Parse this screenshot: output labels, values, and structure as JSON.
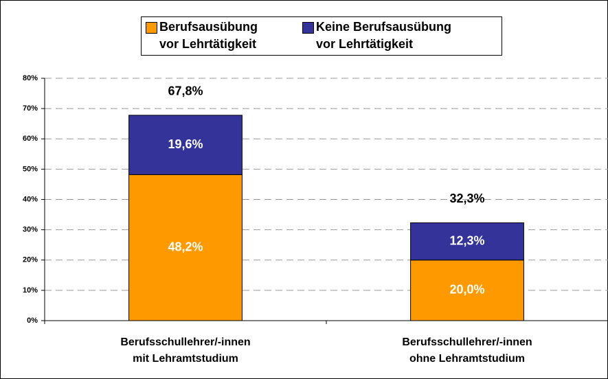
{
  "chart_data": {
    "type": "stacked_bar",
    "categories": [
      "Berufsschullehrer/-innen\nmit Lehramtstudium",
      "Berufsschullehrer/-innen\nohne Lehramtstudium"
    ],
    "series": [
      {
        "name": "Berufsausübung\nvor Lehrtätigkeit",
        "color": "#ff9900",
        "values": [
          48.2,
          20.0
        ],
        "value_labels": [
          "48,2%",
          "20,0%"
        ]
      },
      {
        "name": "Keine Berufsausübung\nvor Lehrtätigkeit",
        "color": "#333399",
        "values": [
          19.6,
          12.3
        ],
        "value_labels": [
          "19,6%",
          "12,3%"
        ]
      }
    ],
    "totals": [
      67.8,
      32.3
    ],
    "total_labels": [
      "67,8%",
      "32,3%"
    ],
    "ylim": [
      0,
      80
    ],
    "yticks": [
      {
        "value": 0,
        "label": "0%"
      },
      {
        "value": 10,
        "label": "10%"
      },
      {
        "value": 20,
        "label": "20%"
      },
      {
        "value": 30,
        "label": "30%"
      },
      {
        "value": 40,
        "label": "40%"
      },
      {
        "value": 50,
        "label": "50%"
      },
      {
        "value": 60,
        "label": "60%"
      },
      {
        "value": 70,
        "label": "70%"
      },
      {
        "value": 80,
        "label": "80%"
      }
    ],
    "grid": true,
    "legend": "top"
  }
}
